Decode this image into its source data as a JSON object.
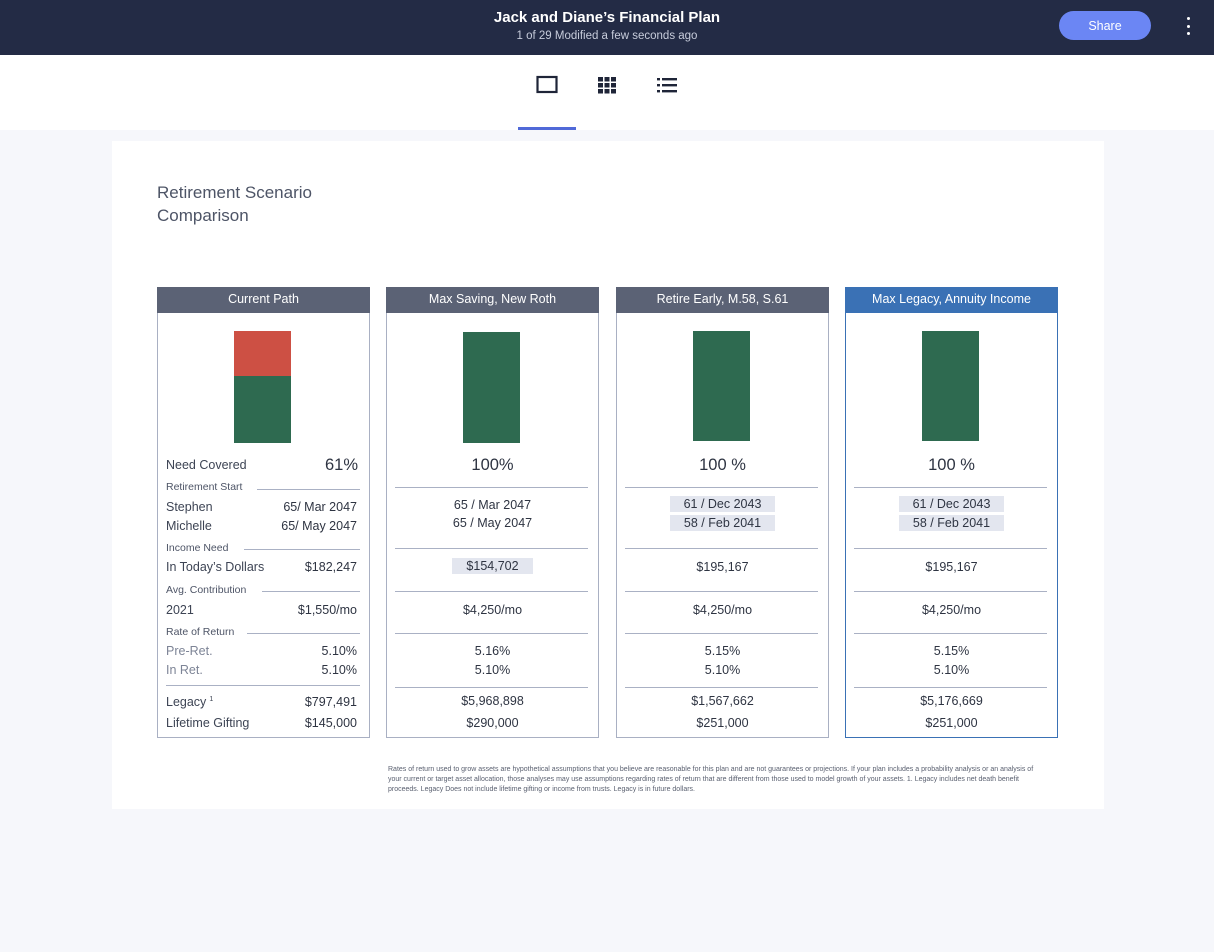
{
  "header": {
    "title": "Jack and Diane’s Financial Plan",
    "subtitle": "1 of 29 Modified a few seconds ago",
    "share_label": "Share",
    "more_icon": "more-vertical-icon"
  },
  "view_tabs": [
    {
      "icon": "single-page-icon",
      "active": true
    },
    {
      "icon": "grid-icon",
      "active": false
    },
    {
      "icon": "list-icon",
      "active": false
    }
  ],
  "page_title": "Retirement Scenario Comparison",
  "row_labels": {
    "need_covered": "Need Covered",
    "retirement_start": "Retirement Start",
    "stephen": "Stephen",
    "michelle": "Michelle",
    "income_need": "Income Need",
    "in_todays_dollars": "In Today’s Dollars",
    "avg_contribution": "Avg. Contribution",
    "year": "2021",
    "rate_of_return": "Rate of Return",
    "pre_ret": "Pre-Ret.",
    "in_ret": "In Ret.",
    "legacy": "Legacy",
    "legacy_sup": "1",
    "lifetime_gifting": "Lifetime Gifting"
  },
  "scenarios": [
    {
      "name": "Current Path",
      "need_covered": "61%",
      "covered_fraction": 0.61,
      "stephen_start": "65/ Mar 2047",
      "michelle_start": "65/ May 2047",
      "income_need": "$182,247",
      "avg_contribution": "$1,550/mo",
      "pre_ret": "5.10%",
      "in_ret": "5.10%",
      "legacy": "$797,491",
      "lifetime_gifting": "$145,000"
    },
    {
      "name": "Max Saving, New Roth",
      "need_covered": "100%",
      "covered_fraction": 1.0,
      "stephen_start": "65 / Mar 2047",
      "michelle_start": "65 / May 2047",
      "income_need": "$154,702",
      "avg_contribution": "$4,250/mo",
      "pre_ret": "5.16%",
      "in_ret": "5.10%",
      "legacy": "$5,968,898",
      "lifetime_gifting": "$290,000"
    },
    {
      "name": "Retire Early, M.58, S.61",
      "need_covered": "100 %",
      "covered_fraction": 1.0,
      "stephen_start": "61 / Dec 2043",
      "michelle_start": "58 / Feb 2041",
      "income_need": "$195,167",
      "avg_contribution": "$4,250/mo",
      "pre_ret": "5.15%",
      "in_ret": "5.10%",
      "legacy": "$1,567,662",
      "lifetime_gifting": "$251,000"
    },
    {
      "name": "Max Legacy, Annuity Income",
      "need_covered": "100 %",
      "covered_fraction": 1.0,
      "stephen_start": "61 / Dec 2043",
      "michelle_start": "58 / Feb 2041",
      "income_need": "$195,167",
      "avg_contribution": "$4,250/mo",
      "pre_ret": "5.15%",
      "in_ret": "5.10%",
      "legacy": "$5,176,669",
      "lifetime_gifting": "$251,000"
    }
  ],
  "colors": {
    "covered": "#2e6a50",
    "shortfall": "#cd5044",
    "header_default": "#5b6275",
    "header_selected": "#3a71b5",
    "accent": "#6b86f4"
  },
  "footnote": "Rates of return used to grow assets are hypothetical assumptions that you believe are reasonable for this plan and are not guarantees or projections. If your plan includes a probability analysis or an analysis of your current or target asset allocation, those analyses may use assumptions regarding rates of return that are different from those used to model growth of your assets. 1. Legacy includes net death benefit proceeds. Legacy Does not include lifetime gifting or income from trusts. Legacy is in future dollars."
}
